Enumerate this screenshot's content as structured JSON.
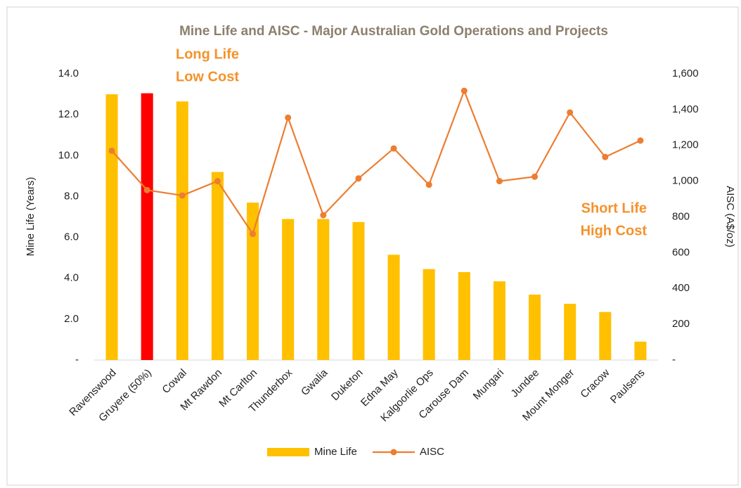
{
  "chart_data": {
    "type": "bar_line",
    "title": "Mine Life and AISC - Major Australian Gold Operations and Projects",
    "ylabel": "Mine Life (Years)",
    "y2label": "AISC (A$/oz)",
    "categories": [
      "Ravenswood",
      "Gruyere (50%)",
      "Cowal",
      "Mt Rawdon",
      "Mt Carlton",
      "Thunderbox",
      "Gwalia",
      "Duketon",
      "Edna May",
      "Kalgoorlie Ops",
      "Carouse Dam",
      "Mungari",
      "Jundee",
      "Mount Monger",
      "Cracow",
      "Paulsens"
    ],
    "series": [
      {
        "name": "Mine Life",
        "type": "bar",
        "color": "#ffc000",
        "bar_colors": [
          "#ffc000",
          "#ff0000",
          "#ffc000",
          "#ffc000",
          "#ffc000",
          "#ffc000",
          "#ffc000",
          "#ffc000",
          "#ffc000",
          "#ffc000",
          "#ffc000",
          "#ffc000",
          "#ffc000",
          "#ffc000",
          "#ffc000",
          "#ffc000"
        ],
        "values": [
          13.0,
          13.05,
          12.65,
          9.2,
          7.7,
          6.9,
          6.9,
          6.75,
          5.15,
          4.45,
          4.3,
          3.85,
          3.2,
          2.75,
          2.35,
          0.9
        ]
      },
      {
        "name": "AISC",
        "type": "line",
        "axis": "y2",
        "color": "#ed7d31",
        "values": [
          1170,
          950,
          920,
          1000,
          705,
          1355,
          810,
          1015,
          1183,
          980,
          1505,
          1000,
          1025,
          1384,
          1135,
          1227
        ]
      }
    ],
    "ylim": [
      0,
      14
    ],
    "yticks": [
      {
        "value": 0,
        "label": "-"
      },
      {
        "value": 2,
        "label": "2.0"
      },
      {
        "value": 4,
        "label": "4.0"
      },
      {
        "value": 6,
        "label": "6.0"
      },
      {
        "value": 8,
        "label": "8.0"
      },
      {
        "value": 10,
        "label": "10.0"
      },
      {
        "value": 12,
        "label": "12.0"
      },
      {
        "value": 14,
        "label": "14.0"
      }
    ],
    "y2lim": [
      0,
      1600
    ],
    "y2ticks": [
      {
        "value": 0,
        "label": "-"
      },
      200,
      400,
      600,
      800,
      {
        "value": 1000,
        "label": "1,000"
      },
      {
        "value": 1200,
        "label": "1,200"
      },
      {
        "value": 1400,
        "label": "1,400"
      },
      {
        "value": 1600,
        "label": "1,600"
      }
    ],
    "annotations": [
      [
        "Long Life",
        "Low Cost"
      ],
      [
        "Short Life",
        "High Cost"
      ]
    ],
    "legend": "bottom"
  }
}
